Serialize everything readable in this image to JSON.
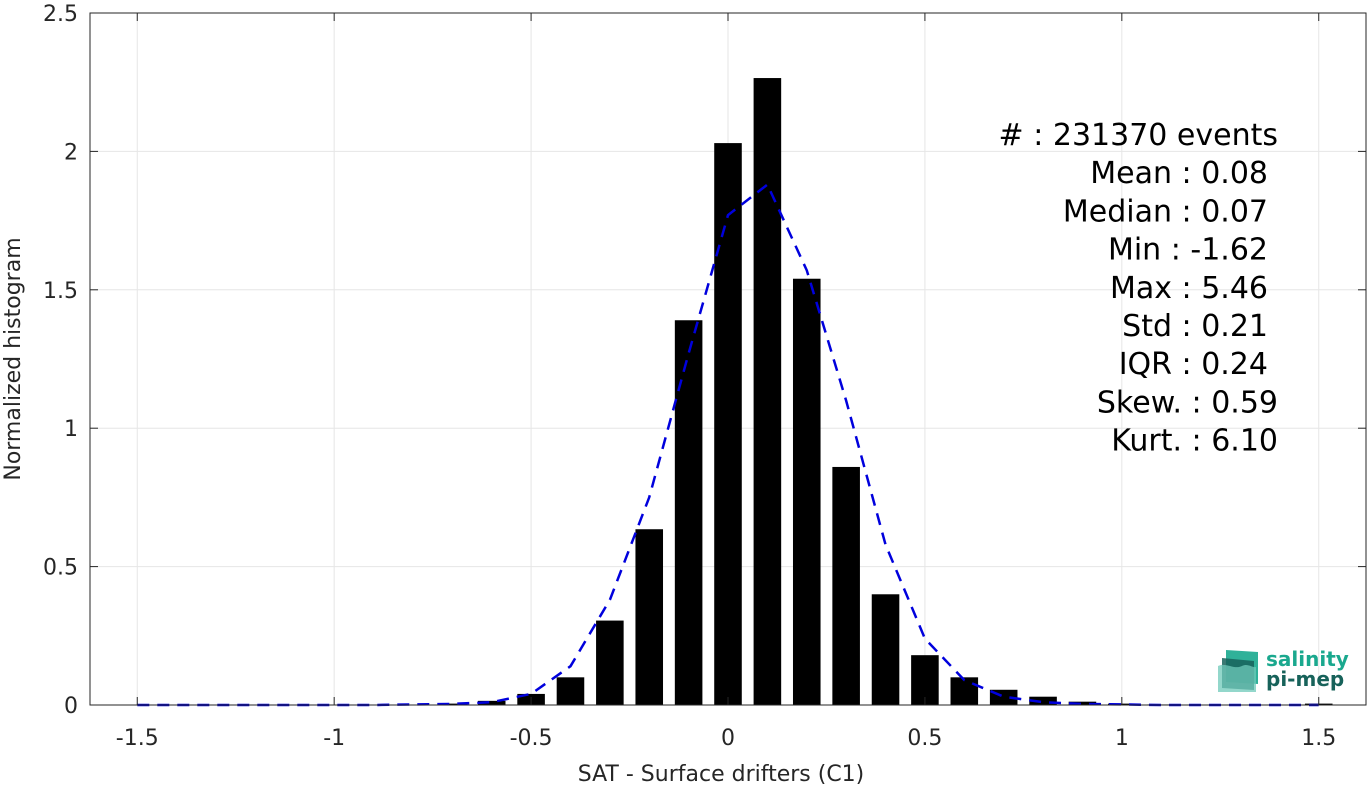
{
  "chart_data": {
    "type": "bar",
    "xlabel": "SAT - Surface drifters (C1)",
    "ylabel": "Normalized histogram",
    "xlim": [
      -1.62,
      1.62
    ],
    "ylim": [
      0,
      2.5
    ],
    "grid": true,
    "bar_width": 0.07,
    "x_ticks": [
      -1.5,
      -1,
      -0.5,
      0,
      0.5,
      1,
      1.5
    ],
    "x_tick_labels": [
      "-1.5",
      "-1",
      "-0.5",
      "0",
      "0.5",
      "1",
      "1.5"
    ],
    "y_ticks": [
      0,
      0.5,
      1,
      1.5,
      2,
      2.5
    ],
    "y_tick_labels": [
      "0",
      "0.5",
      "1",
      "1.5",
      "2",
      "2.5"
    ],
    "bars": {
      "x": [
        -0.7,
        -0.6,
        -0.5,
        -0.4,
        -0.3,
        -0.2,
        -0.1,
        0.0,
        0.1,
        0.2,
        0.3,
        0.4,
        0.5,
        0.6,
        0.7,
        0.8,
        0.9,
        1.0,
        1.1,
        1.5
      ],
      "values": [
        0.005,
        0.015,
        0.04,
        0.1,
        0.305,
        0.635,
        1.39,
        2.03,
        2.265,
        1.54,
        0.86,
        0.4,
        0.18,
        0.1,
        0.055,
        0.03,
        0.012,
        0.005,
        0.002,
        0.005
      ],
      "color": "#000000"
    },
    "fit_curve": {
      "style": "dashed",
      "color": "#0000dd",
      "x": [
        -1.5,
        -1.4,
        -1.3,
        -1.2,
        -1.1,
        -1.0,
        -0.9,
        -0.8,
        -0.7,
        -0.6,
        -0.5,
        -0.4,
        -0.3,
        -0.2,
        -0.1,
        0.0,
        0.1,
        0.2,
        0.3,
        0.4,
        0.5,
        0.6,
        0.7,
        0.8,
        0.9,
        1.0,
        1.1,
        1.2,
        1.3,
        1.4,
        1.5
      ],
      "y": [
        0,
        0,
        0,
        0,
        0,
        0,
        0,
        0.002,
        0.004,
        0.01,
        0.04,
        0.14,
        0.38,
        0.75,
        1.27,
        1.77,
        1.88,
        1.57,
        1.1,
        0.58,
        0.24,
        0.09,
        0.03,
        0.01,
        0.004,
        0.002,
        0,
        0,
        0,
        0,
        0
      ]
    },
    "stats": [
      {
        "label": "#  : 231370 events"
      },
      {
        "label": "Mean : 0.08"
      },
      {
        "label": "Median : 0.07"
      },
      {
        "label": "Min : -1.62"
      },
      {
        "label": "Max : 5.46"
      },
      {
        "label": "Std : 0.21"
      },
      {
        "label": "IQR : 0.24"
      },
      {
        "label": "Skew. : 0.59"
      },
      {
        "label": "Kurt. : 6.10"
      }
    ]
  },
  "logo": {
    "line1": "salinity",
    "line2": "pi-mep",
    "color1": "#1aa88e",
    "color2": "#17625a"
  }
}
